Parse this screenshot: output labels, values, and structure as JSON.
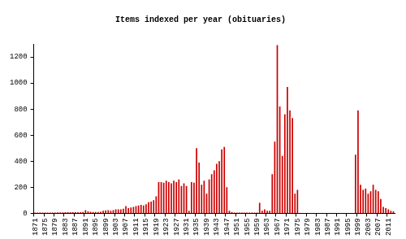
{
  "chart_data": {
    "type": "bar",
    "title": "Items indexed per year (obituaries)",
    "categories": [
      "1871",
      null,
      null,
      null,
      "1875",
      null,
      null,
      null,
      "1879",
      null,
      null,
      null,
      "1883",
      null,
      null,
      null,
      "1887",
      null,
      null,
      null,
      "1891",
      null,
      null,
      null,
      "1895",
      null,
      null,
      null,
      "1899",
      null,
      null,
      null,
      "1903",
      null,
      null,
      null,
      "1907",
      null,
      null,
      null,
      "1911",
      null,
      null,
      null,
      "1915",
      null,
      null,
      null,
      "1919",
      null,
      null,
      null,
      "1923",
      null,
      null,
      null,
      "1927",
      null,
      null,
      null,
      "1931",
      null,
      null,
      null,
      "1935",
      null,
      null,
      null,
      "1939",
      null,
      null,
      null,
      "1943",
      null,
      null,
      null,
      "1947",
      null,
      null,
      null,
      "1951",
      null,
      null,
      null,
      "1955",
      null,
      null,
      null,
      "1959",
      null,
      null,
      null,
      "1963",
      null,
      null,
      null,
      "1967",
      null,
      null,
      null,
      "1971",
      null,
      null,
      null,
      "1975",
      null,
      null,
      null,
      "1979",
      null,
      null,
      null,
      "1983",
      null,
      null,
      null,
      "1987",
      null,
      null,
      null,
      "1991",
      null,
      null,
      null,
      "1995",
      null,
      null,
      null,
      "1999",
      null,
      null,
      null,
      "2003",
      null,
      null,
      null,
      "2007",
      null,
      null,
      null,
      "2011",
      null,
      null
    ],
    "values": [
      5,
      5,
      5,
      5,
      5,
      6,
      6,
      6,
      6,
      7,
      7,
      7,
      8,
      8,
      8,
      8,
      8,
      9,
      9,
      10,
      25,
      15,
      12,
      10,
      10,
      10,
      12,
      20,
      22,
      25,
      20,
      25,
      30,
      30,
      30,
      35,
      55,
      40,
      45,
      50,
      55,
      60,
      65,
      60,
      70,
      85,
      90,
      100,
      130,
      240,
      240,
      235,
      250,
      240,
      230,
      250,
      240,
      260,
      210,
      230,
      210,
      20,
      240,
      235,
      500,
      390,
      220,
      250,
      150,
      260,
      300,
      330,
      380,
      400,
      490,
      510,
      200,
      20,
      10,
      5,
      5,
      5,
      5,
      5,
      5,
      5,
      5,
      5,
      5,
      80,
      20,
      30,
      20,
      20,
      300,
      550,
      1290,
      820,
      440,
      760,
      970,
      790,
      730,
      150,
      180,
      3,
      3,
      3,
      3,
      3,
      2,
      2,
      2,
      2,
      2,
      2,
      2,
      2,
      2,
      2,
      2,
      2,
      2,
      2,
      2,
      2,
      2,
      450,
      790,
      220,
      180,
      190,
      150,
      170,
      220,
      180,
      170,
      110,
      50,
      40,
      30,
      20,
      15
    ],
    "color": "#cc0000",
    "ylim": [
      0,
      1300
    ],
    "yticks": [
      0,
      200,
      400,
      600,
      800,
      1000,
      1200
    ],
    "grid": false
  }
}
